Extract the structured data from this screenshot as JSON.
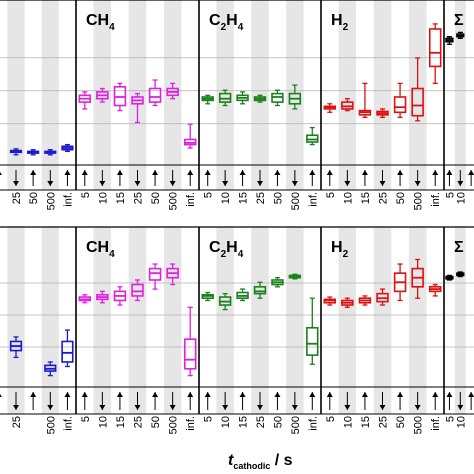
{
  "x_axis_title": {
    "symbol": "t",
    "subscript": "cathodic",
    "unit": " / s"
  },
  "colors": {
    "C3H6": "#1a1acc",
    "CH4": "#e020e0",
    "C2H4": "#1a801a",
    "H2": "#dd1111",
    "sum": "#000000",
    "shade": "#e6e6e6",
    "frame": "#000000"
  },
  "chart_data": [
    {
      "type": "box",
      "row": "top",
      "panels": [
        {
          "key": "C3H6",
          "title_main": "",
          "title_sub": "",
          "categories": [
            "25",
            "50",
            "500",
            "inf."
          ],
          "boxes": [
            {
              "cat": "25",
              "min": 0.6,
              "q1": 0.75,
              "med": 0.8,
              "q3": 0.85,
              "max": 0.95
            },
            {
              "cat": "50",
              "min": 0.6,
              "q1": 0.7,
              "med": 0.75,
              "q3": 0.8,
              "max": 0.9
            },
            {
              "cat": "500",
              "min": 0.6,
              "q1": 0.7,
              "med": 0.75,
              "q3": 0.8,
              "max": 0.9
            },
            {
              "cat": "inf.",
              "min": 0.8,
              "q1": 0.9,
              "med": 1.0,
              "q3": 1.1,
              "max": 1.2
            }
          ]
        },
        {
          "key": "CH4",
          "title_main": "CH",
          "title_sub": "4",
          "categories": [
            "5",
            "10",
            "15",
            "25",
            "50",
            "500",
            "inf."
          ],
          "boxes": [
            {
              "cat": "5",
              "min": 3.3,
              "q1": 3.7,
              "med": 3.9,
              "q3": 4.1,
              "max": 4.3
            },
            {
              "cat": "10",
              "min": 3.7,
              "q1": 3.9,
              "med": 4.1,
              "q3": 4.3,
              "max": 4.5
            },
            {
              "cat": "15",
              "min": 3.2,
              "q1": 3.5,
              "med": 4.0,
              "q3": 4.6,
              "max": 4.8
            },
            {
              "cat": "25",
              "min": 2.5,
              "q1": 3.6,
              "med": 3.8,
              "q3": 4.0,
              "max": 4.2
            },
            {
              "cat": "50",
              "min": 3.5,
              "q1": 3.7,
              "med": 4.0,
              "q3": 4.5,
              "max": 5.0
            },
            {
              "cat": "500",
              "min": 3.9,
              "q1": 4.1,
              "med": 4.3,
              "q3": 4.5,
              "max": 4.8
            },
            {
              "cat": "inf.",
              "min": 1.0,
              "q1": 1.2,
              "med": 1.3,
              "q3": 1.5,
              "max": 2.4
            }
          ]
        },
        {
          "key": "C2H4",
          "title_main": "C",
          "title_sub": "2",
          "title_tail": "H",
          "title_sub2": "4",
          "categories": [
            "5",
            "10",
            "15",
            "25",
            "50",
            "500",
            "inf."
          ],
          "boxes": [
            {
              "cat": "5",
              "min": 3.6,
              "q1": 3.8,
              "med": 3.9,
              "q3": 4.0,
              "max": 4.1
            },
            {
              "cat": "10",
              "min": 3.5,
              "q1": 3.7,
              "med": 3.9,
              "q3": 4.2,
              "max": 4.4
            },
            {
              "cat": "15",
              "min": 3.6,
              "q1": 3.8,
              "med": 3.95,
              "q3": 4.1,
              "max": 4.3
            },
            {
              "cat": "25",
              "min": 3.7,
              "q1": 3.8,
              "med": 3.9,
              "q3": 4.0,
              "max": 4.1
            },
            {
              "cat": "50",
              "min": 3.5,
              "q1": 3.7,
              "med": 4.0,
              "q3": 4.2,
              "max": 4.4
            },
            {
              "cat": "500",
              "min": 3.3,
              "q1": 3.6,
              "med": 3.9,
              "q3": 4.2,
              "max": 4.7
            },
            {
              "cat": "inf.",
              "min": 1.2,
              "q1": 1.35,
              "med": 1.5,
              "q3": 1.75,
              "max": 2.2
            }
          ]
        },
        {
          "key": "H2",
          "title_main": "H",
          "title_sub": "2",
          "categories": [
            "5",
            "10",
            "15",
            "25",
            "50",
            "500",
            "inf."
          ],
          "boxes": [
            {
              "cat": "5",
              "min": 3.1,
              "q1": 3.3,
              "med": 3.4,
              "q3": 3.45,
              "max": 3.6
            },
            {
              "cat": "10",
              "min": 3.2,
              "q1": 3.3,
              "med": 3.45,
              "q3": 3.7,
              "max": 3.9
            },
            {
              "cat": "15",
              "min": 2.8,
              "q1": 2.95,
              "med": 3.1,
              "q3": 3.2,
              "max": 4.8
            },
            {
              "cat": "25",
              "min": 2.8,
              "q1": 2.95,
              "med": 3.05,
              "q3": 3.15,
              "max": 3.3
            },
            {
              "cat": "50",
              "min": 2.8,
              "q1": 3.1,
              "med": 3.4,
              "q3": 4.0,
              "max": 4.8
            },
            {
              "cat": "500",
              "min": 2.6,
              "q1": 2.9,
              "med": 3.5,
              "q3": 4.5,
              "max": 6.3
            },
            {
              "cat": "inf.",
              "min": 4.8,
              "q1": 5.8,
              "med": 6.6,
              "q3": 8.0,
              "max": 8.3
            }
          ]
        },
        {
          "key": "sum",
          "title_main": "Σ",
          "title_sub": "",
          "categories": [
            "5",
            "10"
          ],
          "boxes": [
            {
              "cat": "5",
              "min": 7.1,
              "q1": 7.25,
              "med": 7.35,
              "q3": 7.45,
              "max": 7.55
            },
            {
              "cat": "10",
              "min": 7.45,
              "q1": 7.55,
              "med": 7.6,
              "q3": 7.7,
              "max": 7.8
            }
          ]
        }
      ]
    },
    {
      "type": "box",
      "row": "bottom",
      "panels": [
        {
          "key": "C3H6",
          "title_main": "",
          "title_sub": "",
          "categories": [
            "25",
            "500",
            "inf."
          ],
          "boxes": [
            {
              "cat": "25",
              "min": 1.3,
              "q1": 1.6,
              "med": 1.8,
              "q3": 2.0,
              "max": 2.2
            },
            {
              "cat": "500",
              "min": 0.5,
              "q1": 0.7,
              "med": 0.8,
              "q3": 0.95,
              "max": 1.1
            },
            {
              "cat": "inf.",
              "min": 0.9,
              "q1": 1.1,
              "med": 1.5,
              "q3": 2.0,
              "max": 2.5
            }
          ]
        },
        {
          "key": "CH4",
          "title_main": "CH",
          "title_sub": "4",
          "categories": [
            "5",
            "10",
            "15",
            "25",
            "50",
            "500",
            "inf."
          ],
          "boxes": [
            {
              "cat": "5",
              "min": 3.7,
              "q1": 3.8,
              "med": 3.85,
              "q3": 3.95,
              "max": 4.05
            },
            {
              "cat": "10",
              "min": 3.7,
              "q1": 3.85,
              "med": 3.95,
              "q3": 4.05,
              "max": 4.2
            },
            {
              "cat": "15",
              "min": 3.6,
              "q1": 3.8,
              "med": 4.0,
              "q3": 4.2,
              "max": 4.4
            },
            {
              "cat": "25",
              "min": 3.8,
              "q1": 4.0,
              "med": 4.2,
              "q3": 4.5,
              "max": 4.7
            },
            {
              "cat": "50",
              "min": 4.3,
              "q1": 4.7,
              "med": 5.0,
              "q3": 5.2,
              "max": 5.4
            },
            {
              "cat": "500",
              "min": 4.5,
              "q1": 4.8,
              "med": 5.0,
              "q3": 5.2,
              "max": 5.4
            },
            {
              "cat": "inf.",
              "min": 0.5,
              "q1": 0.8,
              "med": 1.2,
              "q3": 2.1,
              "max": 3.5
            }
          ]
        },
        {
          "key": "C2H4",
          "title_main": "C",
          "title_sub": "2",
          "title_tail": "H",
          "title_sub2": "4",
          "categories": [
            "5",
            "10",
            "15",
            "25",
            "50",
            "500",
            "inf."
          ],
          "boxes": [
            {
              "cat": "5",
              "min": 3.8,
              "q1": 3.9,
              "med": 4.0,
              "q3": 4.05,
              "max": 4.15
            },
            {
              "cat": "10",
              "min": 3.4,
              "q1": 3.6,
              "med": 3.75,
              "q3": 3.95,
              "max": 4.1
            },
            {
              "cat": "15",
              "min": 3.8,
              "q1": 3.9,
              "med": 4.0,
              "q3": 4.15,
              "max": 4.3
            },
            {
              "cat": "25",
              "min": 3.9,
              "q1": 4.1,
              "med": 4.2,
              "q3": 4.4,
              "max": 4.6
            },
            {
              "cat": "50",
              "min": 4.4,
              "q1": 4.5,
              "med": 4.6,
              "q3": 4.7,
              "max": 4.8
            },
            {
              "cat": "500",
              "min": 4.75,
              "q1": 4.8,
              "med": 4.85,
              "q3": 4.9,
              "max": 4.95
            },
            {
              "cat": "inf.",
              "min": 1.0,
              "q1": 1.4,
              "med": 1.9,
              "q3": 2.6,
              "max": 3.9
            }
          ]
        },
        {
          "key": "H2",
          "title_main": "H",
          "title_sub": "2",
          "categories": [
            "5",
            "10",
            "15",
            "25",
            "50",
            "500",
            "inf."
          ],
          "boxes": [
            {
              "cat": "5",
              "min": 3.6,
              "q1": 3.7,
              "med": 3.8,
              "q3": 3.85,
              "max": 3.95
            },
            {
              "cat": "10",
              "min": 3.5,
              "q1": 3.6,
              "med": 3.7,
              "q3": 3.8,
              "max": 3.9
            },
            {
              "cat": "15",
              "min": 3.6,
              "q1": 3.7,
              "med": 3.8,
              "q3": 3.9,
              "max": 4.0
            },
            {
              "cat": "25",
              "min": 3.6,
              "q1": 3.75,
              "med": 3.9,
              "q3": 4.1,
              "max": 4.3
            },
            {
              "cat": "50",
              "min": 3.8,
              "q1": 4.2,
              "med": 4.6,
              "q3": 5.0,
              "max": 5.4
            },
            {
              "cat": "500",
              "min": 3.9,
              "q1": 4.4,
              "med": 4.8,
              "q3": 5.2,
              "max": 5.6
            },
            {
              "cat": "inf.",
              "min": 4.0,
              "q1": 4.2,
              "med": 4.3,
              "q3": 4.4,
              "max": 4.5
            }
          ]
        },
        {
          "key": "sum",
          "title_main": "Σ",
          "title_sub": "",
          "categories": [
            "5",
            "10"
          ],
          "boxes": [
            {
              "cat": "5",
              "min": 4.7,
              "q1": 4.75,
              "med": 4.8,
              "q3": 4.85,
              "max": 4.9
            },
            {
              "cat": "10",
              "min": 4.85,
              "q1": 4.9,
              "med": 4.95,
              "q3": 5.0,
              "max": 5.05
            }
          ]
        }
      ]
    }
  ]
}
